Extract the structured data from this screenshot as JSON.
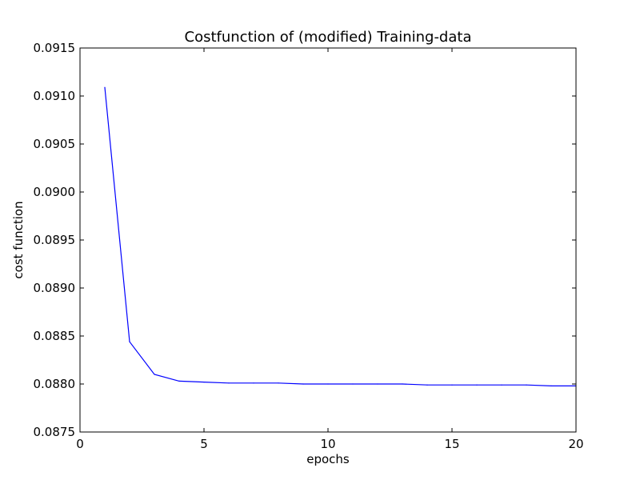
{
  "chart_data": {
    "type": "line",
    "title": "Costfunction of (modified) Training-data",
    "xlabel": "epochs",
    "ylabel": "cost function",
    "xlim": [
      0,
      20
    ],
    "ylim": [
      0.0875,
      0.0915
    ],
    "x_ticks": [
      "0",
      "5",
      "10",
      "15",
      "20"
    ],
    "y_ticks": [
      "0.0875",
      "0.0880",
      "0.0885",
      "0.0890",
      "0.0895",
      "0.0900",
      "0.0905",
      "0.0910",
      "0.0915"
    ],
    "grid": false,
    "series": [
      {
        "color": "#0000ff",
        "x": [
          1,
          2,
          3,
          4,
          5,
          6,
          7,
          8,
          9,
          10,
          11,
          12,
          13,
          14,
          15,
          16,
          17,
          18,
          19,
          20
        ],
        "y": [
          0.09109,
          0.08844,
          0.0881,
          0.08803,
          0.08802,
          0.08801,
          0.08801,
          0.08801,
          0.088,
          0.088,
          0.088,
          0.088,
          0.088,
          0.08799,
          0.08799,
          0.08799,
          0.08799,
          0.08799,
          0.08798,
          0.08798
        ]
      }
    ]
  }
}
